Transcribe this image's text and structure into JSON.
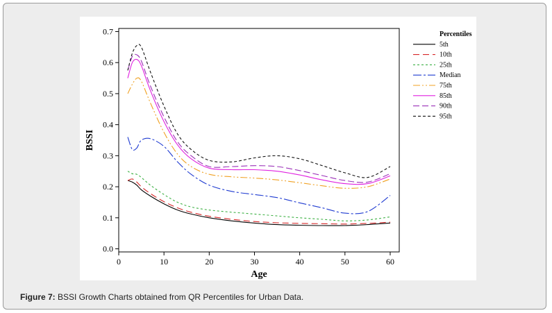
{
  "caption": {
    "prefix": "Figure 7:",
    "text": " BSSI Growth Charts obtained from QR Percentiles for Urban Data."
  },
  "chart_data": {
    "type": "line",
    "title": "",
    "xlabel": "Age",
    "ylabel": "BSSI",
    "xlim": [
      0,
      62
    ],
    "ylim": [
      -0.01,
      0.71
    ],
    "xticks": [
      0,
      10,
      20,
      30,
      40,
      50,
      60
    ],
    "yticks": [
      0.0,
      0.1,
      0.2,
      0.3,
      0.4,
      0.5,
      0.6,
      0.7
    ],
    "ytick_labels": [
      "0.0",
      "0.1",
      "0.2",
      "0.3",
      "0.4",
      "0.5",
      "0.6",
      "0.7"
    ],
    "grid": false,
    "legend": {
      "title": "Percentiles",
      "position": "right"
    },
    "x": [
      2,
      3,
      4,
      5,
      7,
      10,
      13,
      16,
      20,
      25,
      30,
      35,
      40,
      45,
      50,
      55,
      60
    ],
    "series": [
      {
        "name": "5th",
        "color": "#000000",
        "dash": "",
        "values": [
          0.22,
          0.215,
          0.205,
          0.19,
          0.17,
          0.145,
          0.125,
          0.112,
          0.1,
          0.09,
          0.083,
          0.078,
          0.076,
          0.075,
          0.075,
          0.078,
          0.083
        ]
      },
      {
        "name": "10th",
        "color": "#d62728",
        "dash": "9,5",
        "values": [
          0.22,
          0.225,
          0.215,
          0.2,
          0.178,
          0.152,
          0.132,
          0.118,
          0.105,
          0.095,
          0.088,
          0.084,
          0.082,
          0.081,
          0.08,
          0.082,
          0.086
        ]
      },
      {
        "name": "25th",
        "color": "#3cb043",
        "dash": "3,3",
        "values": [
          0.25,
          0.242,
          0.24,
          0.23,
          0.205,
          0.175,
          0.15,
          0.135,
          0.125,
          0.118,
          0.112,
          0.106,
          0.1,
          0.095,
          0.09,
          0.093,
          0.103
        ]
      },
      {
        "name": "Median",
        "color": "#1f3bd1",
        "dash": "12,3,3,3",
        "values": [
          0.36,
          0.32,
          0.325,
          0.35,
          0.355,
          0.33,
          0.28,
          0.24,
          0.205,
          0.185,
          0.175,
          0.165,
          0.148,
          0.132,
          0.115,
          0.12,
          0.172
        ]
      },
      {
        "name": "75th",
        "color": "#f0a020",
        "dash": "10,3,2,3,2,3",
        "values": [
          0.5,
          0.53,
          0.55,
          0.54,
          0.47,
          0.375,
          0.305,
          0.265,
          0.24,
          0.232,
          0.228,
          0.222,
          0.213,
          0.203,
          0.195,
          0.2,
          0.225
        ]
      },
      {
        "name": "85th",
        "color": "#e020e0",
        "dash": "",
        "values": [
          0.55,
          0.6,
          0.61,
          0.59,
          0.51,
          0.41,
          0.335,
          0.29,
          0.26,
          0.255,
          0.255,
          0.25,
          0.238,
          0.222,
          0.21,
          0.21,
          0.235
        ]
      },
      {
        "name": "90th",
        "color": "#9b30b8",
        "dash": "9,4",
        "values": [
          0.575,
          0.62,
          0.625,
          0.605,
          0.525,
          0.425,
          0.345,
          0.3,
          0.265,
          0.265,
          0.268,
          0.265,
          0.252,
          0.236,
          0.22,
          0.215,
          0.242
        ]
      },
      {
        "name": "95th",
        "color": "#111111",
        "dash": "4,3",
        "values": [
          0.575,
          0.63,
          0.655,
          0.65,
          0.57,
          0.46,
          0.37,
          0.32,
          0.285,
          0.28,
          0.293,
          0.3,
          0.29,
          0.268,
          0.245,
          0.23,
          0.265
        ]
      }
    ]
  }
}
